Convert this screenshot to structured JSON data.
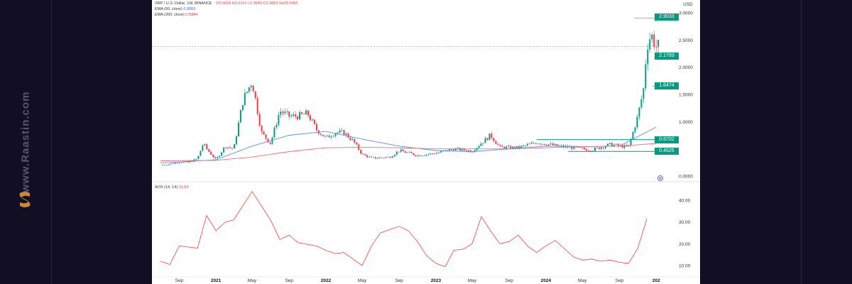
{
  "watermark": "www.Raastin.com",
  "brand_color": "#e0a040",
  "legend": {
    "symbol": "XRP / U.S. Dollar, 1W, BINANCE",
    "ohlc": "O2.5029 H2.6101 L2.3643 C2.3823 Vol26.69M",
    "ema50_label": "EMA (50, close)",
    "ema50_value": "0.9069",
    "ema200_label": "EMA (200, close)",
    "ema200_value": "0.5984",
    "aox_label": "AOX (14, 14)",
    "aox_value": "31.54"
  },
  "colors": {
    "up": "#089981",
    "down": "#f23645",
    "ema50": "#5b8def",
    "ema200": "#e57373",
    "aox": "#f44336",
    "level": "#089981"
  },
  "price_badges": [
    "2.9033",
    "2.1793",
    "1.6474",
    "0.6702",
    "0.4525"
  ],
  "currency": "USD",
  "chart_data": [
    {
      "type": "candlestick",
      "title": "XRP / U.S. Dollar, 1W, BINANCE",
      "ylabel": "USD",
      "ylim": [
        0,
        3.0
      ],
      "y_ticks": [
        "3.0000",
        "2.5000",
        "2.0000",
        "1.5000",
        "1.0000",
        "0.0000"
      ],
      "x_ticks": [
        "Sep",
        "2021",
        "May",
        "Sep",
        "2022",
        "May",
        "Sep",
        "2023",
        "May",
        "Sep",
        "2024",
        "May",
        "Sep",
        "202"
      ],
      "price_points": [
        [
          "2020-07",
          0.2
        ],
        [
          "2020-08",
          0.22
        ],
        [
          "2020-09",
          0.26
        ],
        [
          "2020-10",
          0.25
        ],
        [
          "2020-11",
          0.32
        ],
        [
          "2020-11-20",
          0.6
        ],
        [
          "2020-12",
          0.5
        ],
        [
          "2021-01",
          0.3
        ],
        [
          "2021-02",
          0.55
        ],
        [
          "2021-03",
          0.5
        ],
        [
          "2021-04",
          1.4
        ],
        [
          "2021-05",
          1.75
        ],
        [
          "2021-06",
          0.8
        ],
        [
          "2021-07",
          0.6
        ],
        [
          "2021-08",
          1.2
        ],
        [
          "2021-09",
          1.1
        ],
        [
          "2021-10",
          1.1
        ],
        [
          "2021-11",
          1.15
        ],
        [
          "2021-12",
          0.85
        ],
        [
          "2022-01",
          0.7
        ],
        [
          "2022-02",
          0.8
        ],
        [
          "2022-03",
          0.8
        ],
        [
          "2022-04",
          0.65
        ],
        [
          "2022-05",
          0.4
        ],
        [
          "2022-06",
          0.33
        ],
        [
          "2022-08",
          0.35
        ],
        [
          "2022-09",
          0.47
        ],
        [
          "2022-11",
          0.38
        ],
        [
          "2023-01",
          0.42
        ],
        [
          "2023-03",
          0.5
        ],
        [
          "2023-05",
          0.46
        ],
        [
          "2023-07",
          0.75
        ],
        [
          "2023-08",
          0.53
        ],
        [
          "2023-10",
          0.52
        ],
        [
          "2023-12",
          0.62
        ],
        [
          "2024-02",
          0.56
        ],
        [
          "2024-04",
          0.52
        ],
        [
          "2024-06",
          0.48
        ],
        [
          "2024-08",
          0.58
        ],
        [
          "2024-10",
          0.53
        ],
        [
          "2024-11",
          1.1
        ],
        [
          "2024-11-20",
          1.6
        ],
        [
          "2024-12",
          2.4
        ],
        [
          "2024-12-15",
          2.6
        ],
        [
          "2025-01",
          2.38
        ]
      ],
      "ema50": [
        [
          "2020-07",
          0.24
        ],
        [
          "2021-01",
          0.3
        ],
        [
          "2021-05",
          0.55
        ],
        [
          "2021-09",
          0.75
        ],
        [
          "2022-01",
          0.82
        ],
        [
          "2022-05",
          0.68
        ],
        [
          "2022-09",
          0.55
        ],
        [
          "2023-01",
          0.47
        ],
        [
          "2023-05",
          0.45
        ],
        [
          "2023-09",
          0.5
        ],
        [
          "2024-01",
          0.55
        ],
        [
          "2024-05",
          0.54
        ],
        [
          "2024-09",
          0.55
        ],
        [
          "2025-01",
          0.9
        ]
      ],
      "ema200": [
        [
          "2020-07",
          0.28
        ],
        [
          "2021-01",
          0.29
        ],
        [
          "2021-05",
          0.35
        ],
        [
          "2021-09",
          0.45
        ],
        [
          "2022-01",
          0.52
        ],
        [
          "2022-05",
          0.53
        ],
        [
          "2022-09",
          0.52
        ],
        [
          "2023-01",
          0.5
        ],
        [
          "2023-05",
          0.5
        ],
        [
          "2023-09",
          0.5
        ],
        [
          "2024-01",
          0.52
        ],
        [
          "2024-05",
          0.54
        ],
        [
          "2024-09",
          0.55
        ],
        [
          "2025-01",
          0.6
        ]
      ],
      "levels": [
        2.9033,
        2.1793,
        1.6474,
        0.6702,
        0.4525
      ],
      "last_close": 2.3823
    },
    {
      "type": "line",
      "series": [
        {
          "name": "AOX (14, 14)",
          "values": [
            [
              "2020-07",
              12
            ],
            [
              "2020-08",
              10.5
            ],
            [
              "2020-09",
              19
            ],
            [
              "2020-10",
              18.5
            ],
            [
              "2020-11",
              18
            ],
            [
              "2020-12",
              33
            ],
            [
              "2021-01",
              26
            ],
            [
              "2021-02",
              30
            ],
            [
              "2021-03",
              31
            ],
            [
              "2021-05",
              44
            ],
            [
              "2021-07",
              31
            ],
            [
              "2021-08",
              22
            ],
            [
              "2021-09",
              24
            ],
            [
              "2021-10",
              20.5
            ],
            [
              "2021-12",
              19
            ],
            [
              "2022-01",
              17
            ],
            [
              "2022-02",
              15.5
            ],
            [
              "2022-03",
              16
            ],
            [
              "2022-04",
              13
            ],
            [
              "2022-05",
              10
            ],
            [
              "2022-06",
              19
            ],
            [
              "2022-07",
              25
            ],
            [
              "2022-08",
              26.5
            ],
            [
              "2022-09",
              28
            ],
            [
              "2022-10",
              26
            ],
            [
              "2022-11",
              21
            ],
            [
              "2022-12",
              14.5
            ],
            [
              "2023-01",
              11
            ],
            [
              "2023-02",
              9.5
            ],
            [
              "2023-03",
              17
            ],
            [
              "2023-04",
              17.5
            ],
            [
              "2023-05",
              20
            ],
            [
              "2023-06",
              32.5
            ],
            [
              "2023-07",
              26
            ],
            [
              "2023-08",
              20
            ],
            [
              "2023-09",
              21
            ],
            [
              "2023-10",
              24
            ],
            [
              "2023-11",
              19
            ],
            [
              "2023-12",
              16
            ],
            [
              "2024-01",
              19
            ],
            [
              "2024-02",
              21.5
            ],
            [
              "2024-03",
              18
            ],
            [
              "2024-04",
              14
            ],
            [
              "2024-05",
              12.5
            ],
            [
              "2024-06",
              13
            ],
            [
              "2024-07",
              12
            ],
            [
              "2024-08",
              12.5
            ],
            [
              "2024-09",
              11.5
            ],
            [
              "2024-10",
              11
            ],
            [
              "2024-11",
              18
            ],
            [
              "2024-12",
              31.5
            ]
          ]
        }
      ],
      "ylim": [
        5,
        47
      ],
      "y_ticks": [
        "40.00",
        "30.00",
        "20.00",
        "10.00"
      ]
    }
  ]
}
